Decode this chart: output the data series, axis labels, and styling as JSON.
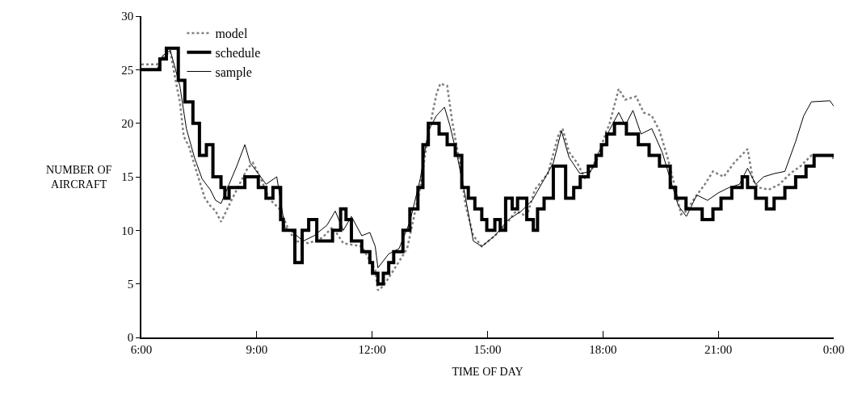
{
  "chart_data": {
    "type": "line",
    "xlabel": "TIME OF DAY",
    "ylabel": "NUMBER OF\nAIRCRAFT",
    "xlim": [
      6,
      24
    ],
    "ylim": [
      0,
      30
    ],
    "xticks": [
      {
        "value": 6,
        "label": "6:00"
      },
      {
        "value": 9,
        "label": "9:00"
      },
      {
        "value": 12,
        "label": "12:00"
      },
      {
        "value": 15,
        "label": "15:00"
      },
      {
        "value": 18,
        "label": "18:00"
      },
      {
        "value": 21,
        "label": "21:00"
      },
      {
        "value": 24,
        "label": "0:00"
      }
    ],
    "yticks": [
      0,
      5,
      10,
      15,
      20,
      25,
      30
    ],
    "legend": "top left",
    "marker": "none",
    "series": [
      {
        "name": "model",
        "color": "#808080",
        "line_style": "dotted",
        "x": [
          6.0,
          6.41,
          6.55,
          6.75,
          6.89,
          7.0,
          7.1,
          7.24,
          7.45,
          7.65,
          7.79,
          7.93,
          8.07,
          8.14,
          8.34,
          8.62,
          8.76,
          8.9,
          9.11,
          9.31,
          9.59,
          9.8,
          10.0,
          10.35,
          10.7,
          10.97,
          11.25,
          11.73,
          12.08,
          12.15,
          12.29,
          12.56,
          12.91,
          13.25,
          13.46,
          13.67,
          13.77,
          13.95,
          14.08,
          14.29,
          14.43,
          14.63,
          14.85,
          15.19,
          15.47,
          15.74,
          16.02,
          16.23,
          16.57,
          16.85,
          16.95,
          17.12,
          17.33,
          17.54,
          17.82,
          18.09,
          18.16,
          18.41,
          18.58,
          18.86,
          19.06,
          19.27,
          19.47,
          19.68,
          19.89,
          20.03,
          20.17,
          20.38,
          20.65,
          20.86,
          21.14,
          21.41,
          21.76,
          21.9,
          22.04,
          22.31,
          22.59,
          22.87,
          23.14,
          23.42,
          23.97,
          24.0
        ],
        "values": [
          25.5,
          25.5,
          26.1,
          26.7,
          24,
          22,
          18.8,
          17.8,
          15.3,
          13,
          12.3,
          11.8,
          10.8,
          11.3,
          12.8,
          14.8,
          15.8,
          16.3,
          14.8,
          13,
          12,
          10.3,
          9,
          8.8,
          9.3,
          10.3,
          8.8,
          8.5,
          6.3,
          4.4,
          4.8,
          6.3,
          8.3,
          14,
          19,
          22.7,
          23.7,
          23.5,
          20.2,
          16,
          12.3,
          9.5,
          8.5,
          9.5,
          10.5,
          11.8,
          11.3,
          13.8,
          15.3,
          19,
          19.5,
          17.3,
          16.3,
          14.8,
          16.3,
          19.3,
          19.8,
          23.2,
          22.2,
          22.5,
          21,
          20.7,
          19.3,
          16.8,
          13.8,
          11.5,
          11.8,
          13,
          14.3,
          15.5,
          15,
          16.3,
          17.6,
          14.7,
          14,
          13.8,
          14.3,
          15.3,
          16,
          17,
          17,
          16.5
        ]
      },
      {
        "name": "schedule",
        "color": "#000000",
        "type": "step",
        "x": [
          6.0,
          6.48,
          6.65,
          6.96,
          7.13,
          7.34,
          7.51,
          7.69,
          7.86,
          8.07,
          8.17,
          8.28,
          8.69,
          9.04,
          9.24,
          9.42,
          9.62,
          9.69,
          9.99,
          10.18,
          10.35,
          10.56,
          10.97,
          11.18,
          11.32,
          11.46,
          11.73,
          11.94,
          12.01,
          12.15,
          12.29,
          12.43,
          12.56,
          12.8,
          12.98,
          13.19,
          13.32,
          13.46,
          13.74,
          13.95,
          14.16,
          14.33,
          14.5,
          14.67,
          14.85,
          14.98,
          15.19,
          15.33,
          15.47,
          15.64,
          15.78,
          16.02,
          16.19,
          16.3,
          16.47,
          16.71,
          17.03,
          17.24,
          17.41,
          17.62,
          17.82,
          17.96,
          18.1,
          18.3,
          18.61,
          18.92,
          19.2,
          19.47,
          19.75,
          19.89,
          20.16,
          20.58,
          20.86,
          21.07,
          21.35,
          21.62,
          21.76,
          21.97,
          22.25,
          22.45,
          22.73,
          23.01,
          23.28,
          23.49,
          24.0
        ],
        "values": [
          25,
          26,
          27,
          24,
          22,
          20,
          17,
          18,
          15,
          14,
          13,
          14,
          15,
          14,
          13,
          14,
          11,
          10,
          7,
          10,
          11,
          9,
          10,
          12,
          11,
          9,
          8,
          7,
          6,
          5,
          6,
          7,
          8,
          10,
          12,
          14,
          18,
          20,
          19,
          18,
          17,
          14,
          13,
          12,
          11,
          10,
          11,
          10,
          13,
          12,
          13,
          11,
          10,
          12,
          13,
          16,
          13,
          14,
          15,
          16,
          17,
          18,
          19,
          20,
          19,
          18,
          17,
          16,
          14,
          13,
          12,
          11,
          12,
          13,
          14,
          15,
          14,
          13,
          12,
          13,
          14,
          15,
          16,
          17,
          17
        ]
      },
      {
        "name": "sample",
        "color": "#000000",
        "x": [
          6.0,
          6.41,
          6.55,
          6.75,
          6.89,
          7.0,
          7.17,
          7.38,
          7.58,
          7.79,
          7.93,
          8.07,
          8.28,
          8.48,
          8.69,
          8.83,
          9.04,
          9.24,
          9.52,
          9.73,
          9.94,
          10.21,
          10.49,
          10.83,
          11.04,
          11.25,
          11.46,
          11.73,
          11.94,
          12.08,
          12.15,
          12.43,
          12.7,
          12.98,
          13.25,
          13.46,
          13.67,
          13.88,
          14.02,
          14.22,
          14.43,
          14.63,
          14.85,
          15.19,
          15.54,
          15.88,
          16.16,
          16.43,
          16.71,
          16.92,
          17.12,
          17.4,
          17.68,
          17.89,
          18.09,
          18.16,
          18.41,
          18.58,
          18.78,
          18.99,
          19.27,
          19.54,
          19.75,
          19.96,
          20.17,
          20.44,
          20.72,
          21.0,
          21.28,
          21.55,
          21.76,
          21.97,
          22.18,
          22.45,
          22.73,
          23.01,
          23.22,
          23.42,
          23.9,
          24.0
        ],
        "values": [
          25,
          25,
          26.3,
          26.8,
          25,
          23.5,
          19.5,
          16.8,
          14.8,
          13.8,
          12.8,
          12.5,
          14.3,
          16,
          18,
          16.3,
          15.3,
          14.3,
          15,
          10.3,
          9.8,
          9,
          9.5,
          10.5,
          11.8,
          10,
          11.3,
          9.5,
          9.8,
          8.5,
          6.5,
          7.8,
          8.3,
          10.8,
          14.8,
          19.3,
          20.7,
          21.5,
          19.8,
          16.8,
          13,
          9,
          8.5,
          9.5,
          11,
          11.8,
          12.8,
          14.5,
          16.3,
          19.3,
          16.8,
          15.3,
          15.5,
          17.3,
          18.3,
          19.3,
          21,
          19.8,
          21.2,
          19,
          19.5,
          17.3,
          14.8,
          12.3,
          11.3,
          13.3,
          12.8,
          13.5,
          14,
          14.3,
          15.8,
          14.3,
          15,
          15.3,
          15.5,
          18.3,
          20.7,
          22,
          22.1,
          21.6
        ]
      }
    ]
  }
}
